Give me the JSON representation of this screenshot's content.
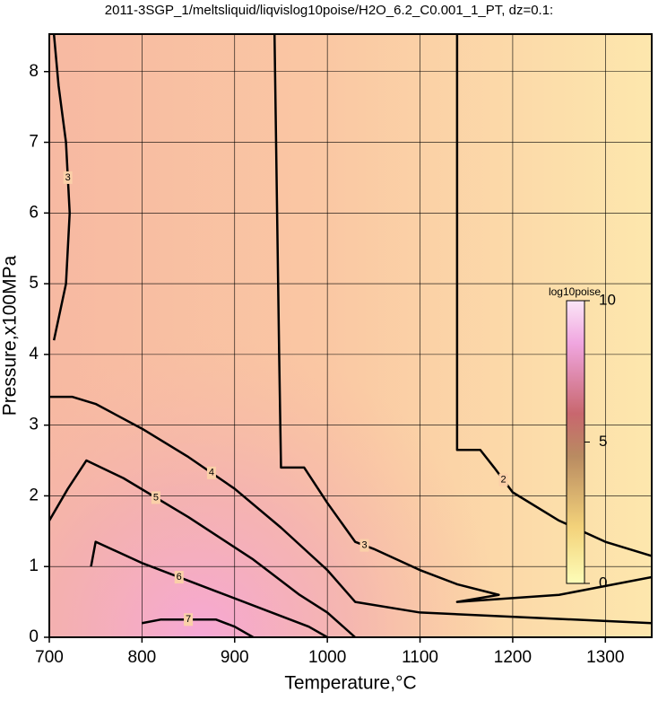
{
  "chart_data": {
    "type": "contour",
    "title": "2011-3SGP_1/meltsliquid/liqvislog10poise/H2O_6.2_C0.001_1_PT, dz=0.1:",
    "x_label": "Temperature,°C",
    "y_label": "Pressure,x100MPa",
    "xlim": [
      700,
      1350
    ],
    "xticks": [
      700,
      800,
      900,
      1000,
      1100,
      1200,
      1300
    ],
    "ylim": [
      0,
      8.53
    ],
    "yticks": [
      0,
      1,
      2,
      3,
      4,
      5,
      6,
      7,
      8
    ],
    "grid": true,
    "contours": [
      {
        "level": 2,
        "x": [
          1140,
          1140,
          1165,
          1180,
          1200,
          1250,
          1300,
          1350
        ],
        "y": [
          8.53,
          2.65,
          2.65,
          2.4,
          2.05,
          1.65,
          1.35,
          1.15
        ]
      },
      {
        "level": 3,
        "x": [
          943,
          948,
          950,
          975,
          1000,
          1030,
          1050,
          1100,
          1140,
          1185,
          1140,
          1250,
          1350
        ],
        "y": [
          8.53,
          4.0,
          2.4,
          2.4,
          1.9,
          1.35,
          1.25,
          0.95,
          0.75,
          0.6,
          0.5,
          0.6,
          0.85
        ]
      },
      {
        "level": 4,
        "x": [
          700,
          725,
          750,
          800,
          850,
          900,
          950,
          1000,
          1030,
          1100,
          1350
        ],
        "y": [
          3.4,
          3.4,
          3.3,
          2.95,
          2.55,
          2.1,
          1.55,
          0.95,
          0.5,
          0.35,
          0.2
        ]
      },
      {
        "level": 5,
        "x": [
          700,
          720,
          740,
          780,
          850,
          920,
          970,
          1000,
          1030
        ],
        "y": [
          1.65,
          2.1,
          2.5,
          2.25,
          1.7,
          1.1,
          0.6,
          0.35,
          0.0
        ]
      },
      {
        "level": 6,
        "x": [
          745,
          750,
          800,
          880,
          940,
          980,
          1000
        ],
        "y": [
          1.0,
          1.35,
          1.05,
          0.65,
          0.35,
          0.15,
          0.0
        ]
      },
      {
        "level": 7,
        "x": [
          800,
          820,
          880,
          900,
          920
        ],
        "y": [
          0.2,
          0.25,
          0.25,
          0.15,
          0.0
        ]
      },
      {
        "level": 3,
        "x": [
          705,
          710,
          718,
          722,
          718,
          705
        ],
        "y": [
          8.53,
          7.8,
          7.0,
          6.0,
          5.0,
          4.2
        ]
      }
    ],
    "colorbar": {
      "label": "log10poise",
      "lim": [
        0,
        10
      ],
      "ticks": [
        0,
        5,
        10
      ]
    }
  }
}
